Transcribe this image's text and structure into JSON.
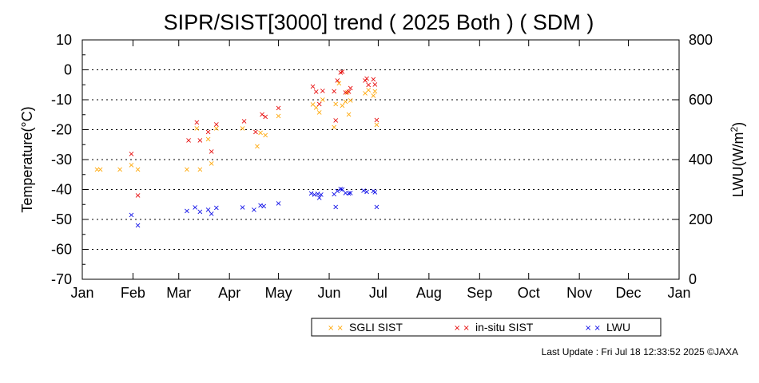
{
  "chart_data": {
    "type": "scatter",
    "title": "SIPR/SIST[3000] trend ( 2025 Both ) ( SDM )",
    "ylabel": "Temperature(°C)",
    "y2label": "LWU(W/m",
    "y2label_sup": "2",
    "y2label_end": ")",
    "ylim": [
      -70,
      10
    ],
    "y2lim": [
      0,
      800
    ],
    "yticks": [
      "10",
      "0",
      "-10",
      "-20",
      "-30",
      "-40",
      "-50",
      "-60",
      "-70"
    ],
    "y2ticks": [
      "800",
      "600",
      "400",
      "200",
      "0"
    ],
    "xticks": [
      "Jan",
      "Feb",
      "Mar",
      "Apr",
      "May",
      "Jun",
      "Jul",
      "Aug",
      "Sep",
      "Oct",
      "Nov",
      "Dec",
      "Jan"
    ],
    "grid": "horizontal dotted",
    "legend_position": "bottom-right",
    "marker": "×",
    "series": [
      {
        "name": "SGLI SIST",
        "color": "#ffa500",
        "axis": "left",
        "points": [
          [
            "2025-01-10",
            -33.2
          ],
          [
            "2025-01-12",
            -33.2
          ],
          [
            "2025-01-24",
            -33.2
          ],
          [
            "2025-01-31",
            -31.7
          ],
          [
            "2025-02-04",
            -33.2
          ],
          [
            "2025-03-06",
            -33.2
          ],
          [
            "2025-03-12",
            -19.4
          ],
          [
            "2025-03-14",
            -33.2
          ],
          [
            "2025-03-19",
            -23.1
          ],
          [
            "2025-03-21",
            -31.2
          ],
          [
            "2025-03-24",
            -19.4
          ],
          [
            "2025-04-09",
            -19.4
          ],
          [
            "2025-04-18",
            -25.5
          ],
          [
            "2025-04-20",
            -20.9
          ],
          [
            "2025-04-23",
            -21.7
          ],
          [
            "2025-05-01",
            -15.3
          ],
          [
            "2025-05-22",
            -11.5
          ],
          [
            "2025-05-24",
            -12.5
          ],
          [
            "2025-05-26",
            -14.1
          ],
          [
            "2025-05-28",
            -9.8
          ],
          [
            "2025-06-04",
            -19.1
          ],
          [
            "2025-06-05",
            -11.3
          ],
          [
            "2025-06-07",
            -4.4
          ],
          [
            "2025-06-09",
            -11.9
          ],
          [
            "2025-06-11",
            -10.5
          ],
          [
            "2025-06-12",
            -7.4
          ],
          [
            "2025-06-13",
            -14.8
          ],
          [
            "2025-06-14",
            -10.1
          ],
          [
            "2025-06-23",
            -7.7
          ],
          [
            "2025-06-25",
            -6.6
          ],
          [
            "2025-06-28",
            -8.5
          ],
          [
            "2025-06-29",
            -7.1
          ],
          [
            "2025-06-30",
            -18.2
          ]
        ]
      },
      {
        "name": "in-situ SIST",
        "color": "#e60000",
        "axis": "left",
        "points": [
          [
            "2025-01-31",
            -28.0
          ],
          [
            "2025-02-04",
            -41.9
          ],
          [
            "2025-03-07",
            -23.4
          ],
          [
            "2025-03-12",
            -17.5
          ],
          [
            "2025-03-14",
            -23.4
          ],
          [
            "2025-03-19",
            -20.6
          ],
          [
            "2025-03-21",
            -27.2
          ],
          [
            "2025-03-24",
            -18.1
          ],
          [
            "2025-04-10",
            -17.1
          ],
          [
            "2025-04-17",
            -20.6
          ],
          [
            "2025-04-21",
            -14.8
          ],
          [
            "2025-04-23",
            -15.6
          ],
          [
            "2025-05-01",
            -12.7
          ],
          [
            "2025-05-22",
            -5.5
          ],
          [
            "2025-05-24",
            -7.2
          ],
          [
            "2025-05-26",
            -11.3
          ],
          [
            "2025-05-28",
            -6.9
          ],
          [
            "2025-06-04",
            -7.0
          ],
          [
            "2025-06-05",
            -16.8
          ],
          [
            "2025-06-06",
            -3.4
          ],
          [
            "2025-06-08",
            -0.8
          ],
          [
            "2025-06-09",
            -0.5
          ],
          [
            "2025-06-11",
            -7.5
          ],
          [
            "2025-06-13",
            -7.2
          ],
          [
            "2025-06-14",
            -6.0
          ],
          [
            "2025-06-23",
            -3.4
          ],
          [
            "2025-06-24",
            -2.8
          ],
          [
            "2025-06-25",
            -4.9
          ],
          [
            "2025-06-28",
            -3.0
          ],
          [
            "2025-06-29",
            -4.8
          ],
          [
            "2025-06-30",
            -16.7
          ]
        ]
      },
      {
        "name": "LWU",
        "color": "#0000e6",
        "axis": "right",
        "points": [
          [
            "2025-01-31",
            216
          ],
          [
            "2025-02-04",
            181
          ],
          [
            "2025-03-06",
            229
          ],
          [
            "2025-03-11",
            242
          ],
          [
            "2025-03-14",
            227
          ],
          [
            "2025-03-19",
            234
          ],
          [
            "2025-03-21",
            220
          ],
          [
            "2025-03-24",
            240
          ],
          [
            "2025-04-09",
            242
          ],
          [
            "2025-04-16",
            233
          ],
          [
            "2025-04-20",
            248
          ],
          [
            "2025-04-22",
            246
          ],
          [
            "2025-05-01",
            255
          ],
          [
            "2025-05-21",
            288
          ],
          [
            "2025-05-23",
            284
          ],
          [
            "2025-05-25",
            287
          ],
          [
            "2025-05-26",
            273
          ],
          [
            "2025-05-27",
            284
          ],
          [
            "2025-06-04",
            285
          ],
          [
            "2025-06-05",
            243
          ],
          [
            "2025-06-06",
            296
          ],
          [
            "2025-06-08",
            303
          ],
          [
            "2025-06-09",
            301
          ],
          [
            "2025-06-11",
            289
          ],
          [
            "2025-06-13",
            288
          ],
          [
            "2025-06-14",
            290
          ],
          [
            "2025-06-22",
            297
          ],
          [
            "2025-06-24",
            293
          ],
          [
            "2025-06-28",
            296
          ],
          [
            "2025-06-29",
            292
          ],
          [
            "2025-06-30",
            243
          ]
        ]
      }
    ]
  },
  "footer": "Last Update : Fri Jul 18 12:33:52 2025  ©JAXA"
}
